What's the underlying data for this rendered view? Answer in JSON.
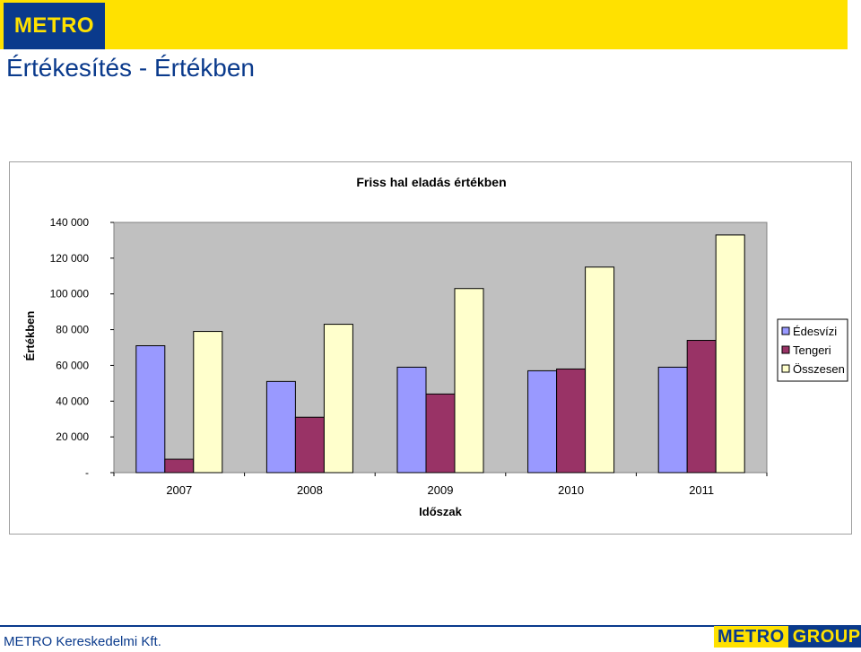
{
  "header": {
    "logo_text": "METRO",
    "page_title": "Értékesítés - Értékben"
  },
  "colors": {
    "band": "#ffe100",
    "brand_blue": "#0a3a8c",
    "plot_bg": "#c0c0c0"
  },
  "chart_data": {
    "type": "bar",
    "title": "Friss hal eladás értékben",
    "xlabel": "Időszak",
    "ylabel": "Értékben",
    "categories": [
      "2007",
      "2008",
      "2009",
      "2010",
      "2011"
    ],
    "series": [
      {
        "name": "Édesvízi",
        "color": "#9999ff",
        "values": [
          71000,
          51000,
          59000,
          57000,
          59000
        ]
      },
      {
        "name": "Tengeri",
        "color": "#993366",
        "values": [
          7500,
          31000,
          44000,
          58000,
          74000
        ]
      },
      {
        "name": "Összesen",
        "color": "#ffffcc",
        "values": [
          79000,
          83000,
          103000,
          115000,
          133000
        ]
      }
    ],
    "ylim": [
      0,
      140000
    ],
    "yticks": [
      0,
      20000,
      40000,
      60000,
      80000,
      100000,
      120000,
      140000
    ],
    "ytick_labels": [
      "-",
      "20 000",
      "40 000",
      "60 000",
      "80 000",
      "100 000",
      "120 000",
      "140 000"
    ],
    "grid": false,
    "legend_position": "right"
  },
  "footer": {
    "company": "METRO Kereskedelmi Kft.",
    "group_logo_metro": "METRO",
    "group_logo_group": "GROUP"
  }
}
